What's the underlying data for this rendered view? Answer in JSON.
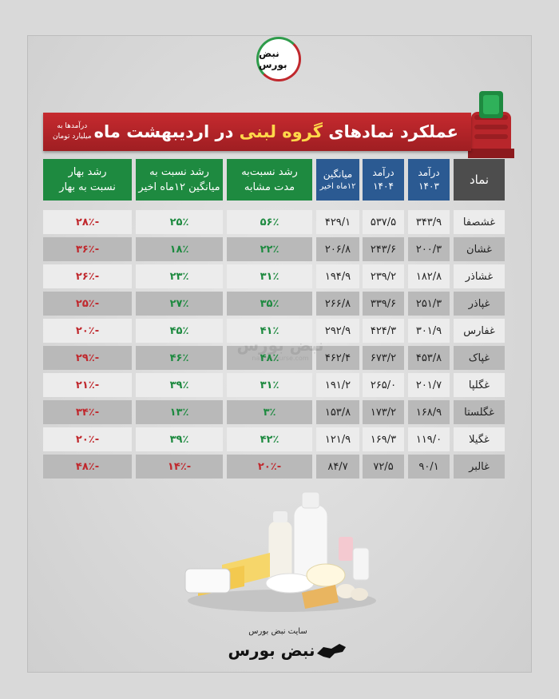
{
  "brand": {
    "logo_text": "نبض بورس",
    "footer_site": "سایت نبض بورس",
    "footer_logo": "نبض بورس",
    "watermark_name": "نبض بورس",
    "watermark_url": "nabzebourse.com"
  },
  "banner": {
    "title_start": "عملکرد نمادهای ",
    "title_highlight": "گروه لبنی",
    "title_end": " در اردیبهشت ماه",
    "note_line1": "درآمدها به",
    "note_line2": "میلیارد تومان"
  },
  "headers": {
    "symbol": "نماد",
    "rev1403_a": "درآمد",
    "rev1403_b": "۱۴۰۳",
    "rev1404_a": "درآمد",
    "rev1404_b": "۱۴۰۴",
    "avg_a": "میانگین",
    "avg_b": "۱۲ماه اخیر",
    "growth_same_a": "رشد نسبت‌به",
    "growth_same_b": "مدت مشابه",
    "growth_avg_a": "رشد نسبت به",
    "growth_avg_b": "میانگین ۱۲ماه اخیر",
    "growth_spring_a": "رشد بهار",
    "growth_spring_b": "نسبت به بهار"
  },
  "rows": [
    {
      "symbol": "غشصفا",
      "rev1403": "۳۴۳/۹",
      "rev1404": "۵۳۷/۵",
      "avg": "۴۲۹/۱",
      "growth_same": "۵۶٪",
      "growth_avg": "۲۵٪",
      "growth_spring": "-۲۸٪"
    },
    {
      "symbol": "غشان",
      "rev1403": "۲۰۰/۳",
      "rev1404": "۲۴۳/۶",
      "avg": "۲۰۶/۸",
      "growth_same": "۲۲٪",
      "growth_avg": "۱۸٪",
      "growth_spring": "-۳۶٪"
    },
    {
      "symbol": "غشاذر",
      "rev1403": "۱۸۲/۸",
      "rev1404": "۲۳۹/۲",
      "avg": "۱۹۴/۹",
      "growth_same": "۳۱٪",
      "growth_avg": "۲۳٪",
      "growth_spring": "-۲۶٪"
    },
    {
      "symbol": "غپاذر",
      "rev1403": "۲۵۱/۳",
      "rev1404": "۳۳۹/۶",
      "avg": "۲۶۶/۸",
      "growth_same": "۳۵٪",
      "growth_avg": "۲۷٪",
      "growth_spring": "-۲۵٪"
    },
    {
      "symbol": "غفارس",
      "rev1403": "۳۰۱/۹",
      "rev1404": "۴۲۴/۳",
      "avg": "۲۹۲/۹",
      "growth_same": "۴۱٪",
      "growth_avg": "۴۵٪",
      "growth_spring": "-۲۰٪"
    },
    {
      "symbol": "غپاک",
      "rev1403": "۴۵۳/۸",
      "rev1404": "۶۷۳/۲",
      "avg": "۴۶۲/۴",
      "growth_same": "۴۸٪",
      "growth_avg": "۴۶٪",
      "growth_spring": "-۲۹٪"
    },
    {
      "symbol": "غگلپا",
      "rev1403": "۲۰۱/۷",
      "rev1404": "۲۶۵/۰",
      "avg": "۱۹۱/۲",
      "growth_same": "۳۱٪",
      "growth_avg": "۳۹٪",
      "growth_spring": "-۲۱٪"
    },
    {
      "symbol": "غگلستا",
      "rev1403": "۱۶۸/۹",
      "rev1404": "۱۷۳/۲",
      "avg": "۱۵۳/۸",
      "growth_same": "۳٪",
      "growth_avg": "۱۳٪",
      "growth_spring": "-۳۴٪"
    },
    {
      "symbol": "غگیلا",
      "rev1403": "۱۱۹/۰",
      "rev1404": "۱۶۹/۳",
      "avg": "۱۲۱/۹",
      "growth_same": "۴۲٪",
      "growth_avg": "۳۹٪",
      "growth_spring": "-۲۰٪"
    },
    {
      "symbol": "غالبر",
      "rev1403": "۹۰/۱",
      "rev1404": "۷۲/۵",
      "avg": "۸۴/۷",
      "growth_same": "-۲۰٪",
      "growth_avg": "-۱۴٪",
      "growth_spring": "-۴۸٪"
    }
  ],
  "colors": {
    "banner_red": "#c62a2f",
    "header_blue": "#2b5a92",
    "header_green": "#1e8a40",
    "header_grey": "#4d4d4d",
    "positive": "#1e8a40",
    "negative": "#c0282d"
  }
}
